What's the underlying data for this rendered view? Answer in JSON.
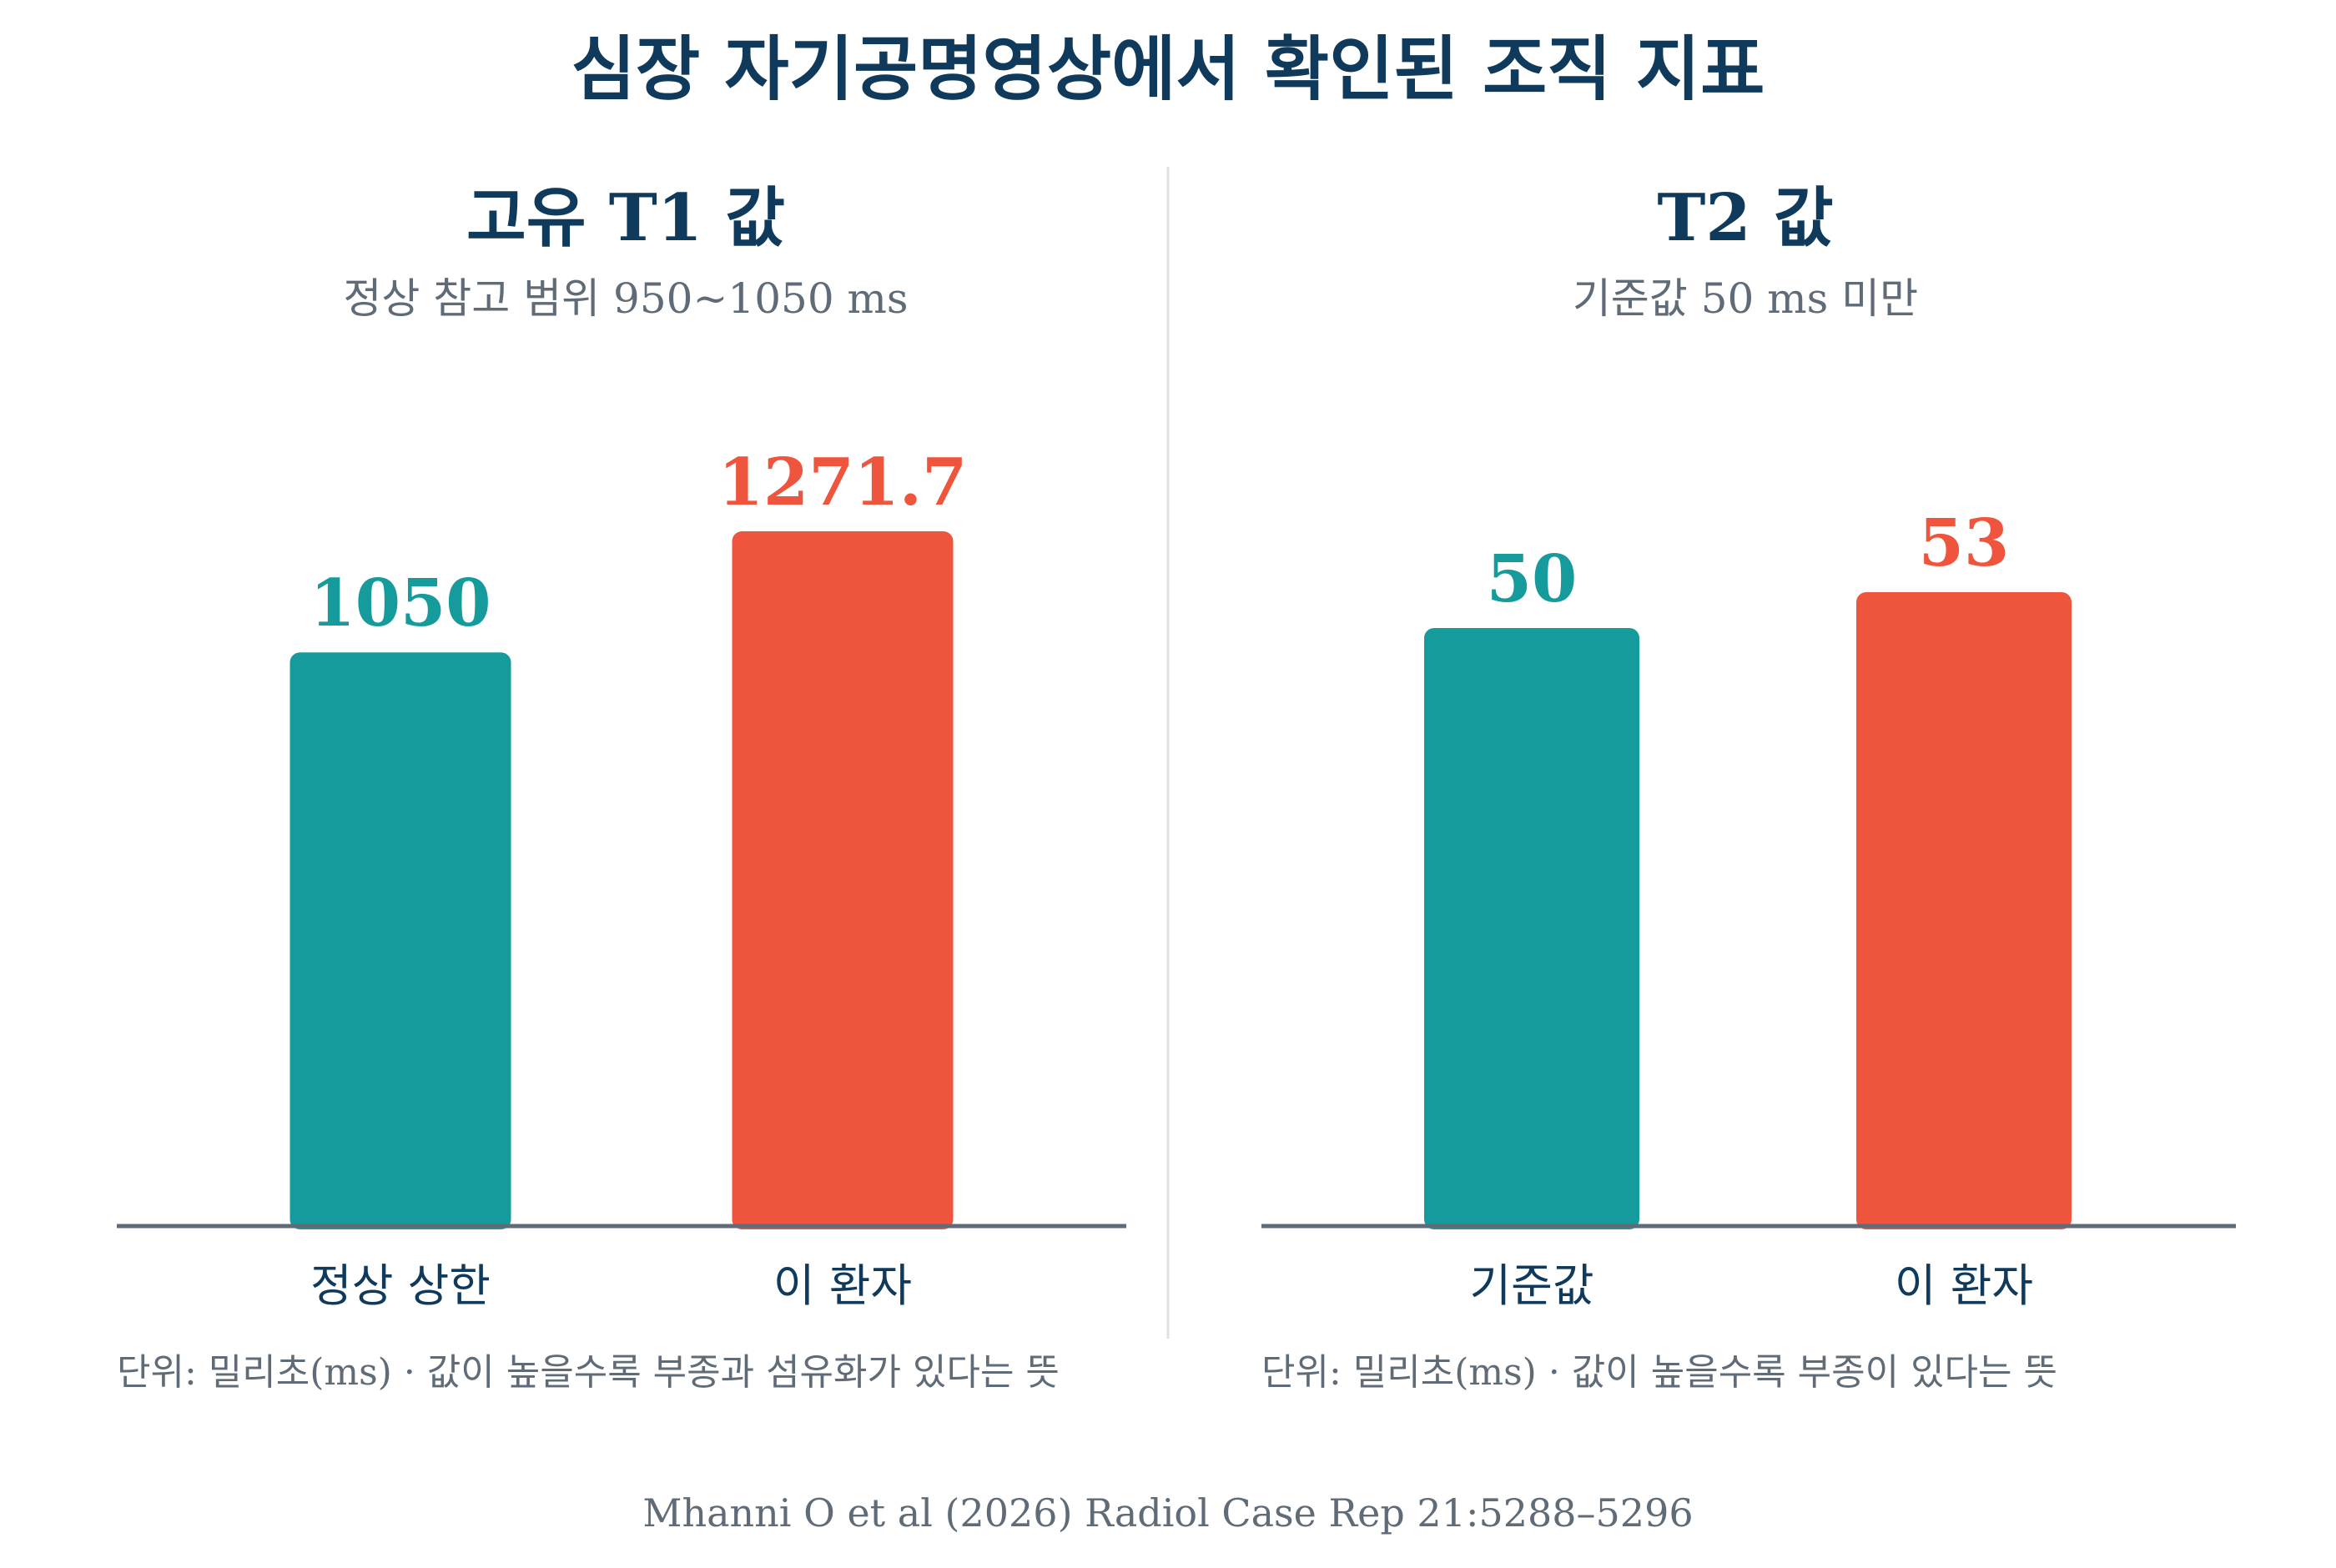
{
  "title": "심장 자기공명영상에서 확인된 조직 지표",
  "source": "Mhanni O et al (2026) Radiol Case Rep 21:5288–5296",
  "colors": {
    "title": "#0f3a5c",
    "reference": "#169b9c",
    "patient": "#ef553c",
    "axis": "#5f6b77",
    "subtitle": "#5f6b77",
    "divider": "#e1e1e1"
  },
  "chart_data": [
    {
      "type": "bar",
      "title": "고유 T1 값",
      "subtitle": "정상 참고 범위 950~1050 ms",
      "categories": [
        "정상 상한",
        "이 환자"
      ],
      "values": [
        1050,
        1271.7
      ],
      "value_labels": [
        "1050",
        "1271.7"
      ],
      "ylim": [
        0,
        1271.7
      ],
      "grid": false,
      "footnote": "단위: 밀리초(ms) · 값이 높을수록 부종과 섬유화가 있다는 뜻"
    },
    {
      "type": "bar",
      "title": "T2 값",
      "subtitle": "기준값 50 ms 미만",
      "categories": [
        "기준값",
        "이 환자"
      ],
      "values": [
        50,
        53
      ],
      "value_labels": [
        "50",
        "53"
      ],
      "ylim": [
        0,
        53
      ],
      "grid": false,
      "footnote": "단위: 밀리초(ms) · 값이 높을수록 부종이 있다는 뜻"
    }
  ]
}
